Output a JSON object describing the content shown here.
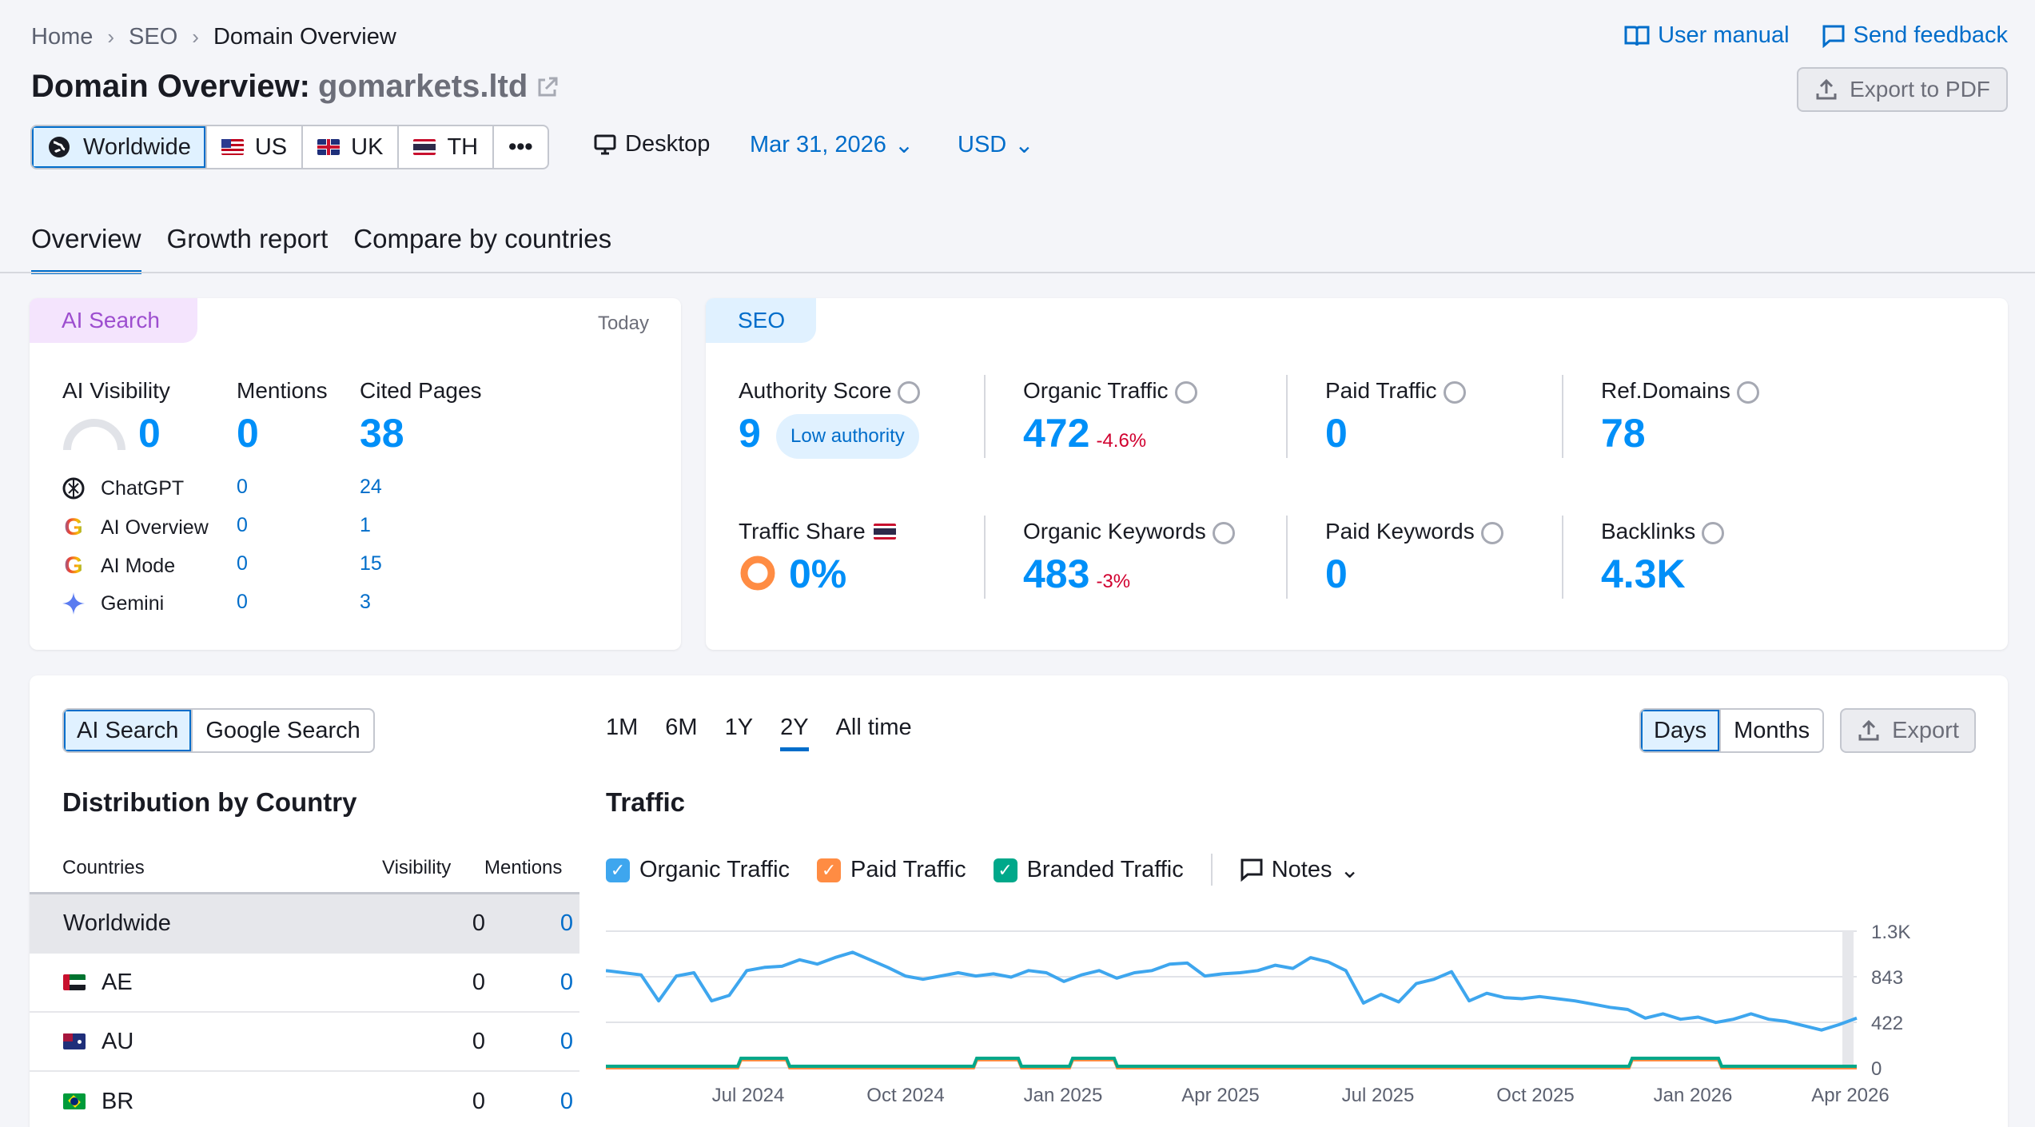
{
  "breadcrumb": [
    "Home",
    "SEO",
    "Domain Overview"
  ],
  "header": {
    "title": "Domain Overview:",
    "domain": "gomarkets.ltd",
    "user_manual": "User manual",
    "send_feedback": "Send feedback",
    "export_pdf": "Export to PDF"
  },
  "databases": [
    "Worldwide",
    "US",
    "UK",
    "TH"
  ],
  "more": "•••",
  "device": "Desktop",
  "date": "Mar 31, 2026",
  "currency": "USD",
  "tabs": [
    "Overview",
    "Growth report",
    "Compare by countries"
  ],
  "ai_card": {
    "head": "AI Search",
    "today": "Today",
    "col_visibility": "AI Visibility",
    "col_mentions": "Mentions",
    "col_cited": "Cited Pages",
    "visibility": "0",
    "mentions": "0",
    "cited": "38",
    "rows": [
      {
        "name": "ChatGPT",
        "mentions": "0",
        "cited": "24"
      },
      {
        "name": "AI Overview",
        "mentions": "0",
        "cited": "1"
      },
      {
        "name": "AI Mode",
        "mentions": "0",
        "cited": "15"
      },
      {
        "name": "Gemini",
        "mentions": "0",
        "cited": "3"
      }
    ]
  },
  "seo_card": {
    "head": "SEO",
    "authority_label": "Authority Score",
    "authority_value": "9",
    "authority_badge": "Low authority",
    "organic_traffic_label": "Organic Traffic",
    "organic_traffic_value": "472",
    "organic_traffic_change": "-4.6%",
    "paid_traffic_label": "Paid Traffic",
    "paid_traffic_value": "0",
    "ref_domains_label": "Ref.Domains",
    "ref_domains_value": "78",
    "traffic_share_label": "Traffic Share",
    "traffic_share_value": "0%",
    "organic_kw_label": "Organic Keywords",
    "organic_kw_value": "483",
    "organic_kw_change": "-3%",
    "paid_kw_label": "Paid Keywords",
    "paid_kw_value": "0",
    "backlinks_label": "Backlinks",
    "backlinks_value": "4.3K"
  },
  "bottom": {
    "search_toggle": [
      "AI Search",
      "Google Search"
    ],
    "periods": [
      "1M",
      "6M",
      "1Y",
      "2Y",
      "All time"
    ],
    "granularity": [
      "Days",
      "Months"
    ],
    "export": "Export",
    "dist_title": "Distribution by Country",
    "col_countries": "Countries",
    "col_visibility": "Visibility",
    "col_mentions": "Mentions",
    "countries": [
      {
        "name": "Worldwide",
        "visibility": "0",
        "mentions": "0"
      },
      {
        "name": "AE",
        "visibility": "0",
        "mentions": "0"
      },
      {
        "name": "AU",
        "visibility": "0",
        "mentions": "0"
      },
      {
        "name": "BR",
        "visibility": "0",
        "mentions": "0"
      }
    ],
    "traffic_title": "Traffic",
    "legend": [
      "Organic Traffic",
      "Paid Traffic",
      "Branded Traffic"
    ],
    "notes": "Notes"
  },
  "colors": {
    "organic": "#3ea6ee",
    "paid": "#ff8c43",
    "branded": "#00a88a",
    "accent": "#006dca"
  },
  "chart_data": {
    "type": "line",
    "x_ticks": [
      "Jul 2024",
      "Oct 2024",
      "Jan 2025",
      "Apr 2025",
      "Jul 2025",
      "Oct 2025",
      "Jan 2026",
      "Apr 2026"
    ],
    "y_ticks": [
      "1.3K",
      "843",
      "422",
      "0"
    ],
    "ylim": [
      0,
      1265
    ],
    "series": [
      {
        "name": "Organic Traffic",
        "values": [
          900,
          880,
          860,
          620,
          850,
          880,
          620,
          670,
          900,
          930,
          940,
          1000,
          960,
          1020,
          1070,
          1000,
          930,
          850,
          820,
          850,
          880,
          850,
          870,
          840,
          900,
          880,
          800,
          860,
          900,
          830,
          880,
          900,
          960,
          970,
          850,
          870,
          880,
          900,
          950,
          920,
          1020,
          980,
          900,
          600,
          680,
          610,
          780,
          820,
          890,
          620,
          690,
          650,
          640,
          660,
          640,
          620,
          590,
          560,
          540,
          460,
          500,
          450,
          470,
          420,
          450,
          500,
          450,
          430,
          390,
          350,
          400,
          460
        ]
      },
      {
        "name": "Paid Traffic",
        "values": [
          0,
          0,
          0,
          0,
          0,
          0,
          0,
          0,
          0,
          0,
          0,
          0
        ]
      },
      {
        "name": "Branded Traffic",
        "values": [
          0,
          0,
          0,
          0,
          0,
          0,
          0,
          0,
          0,
          0,
          0,
          0
        ]
      }
    ]
  }
}
